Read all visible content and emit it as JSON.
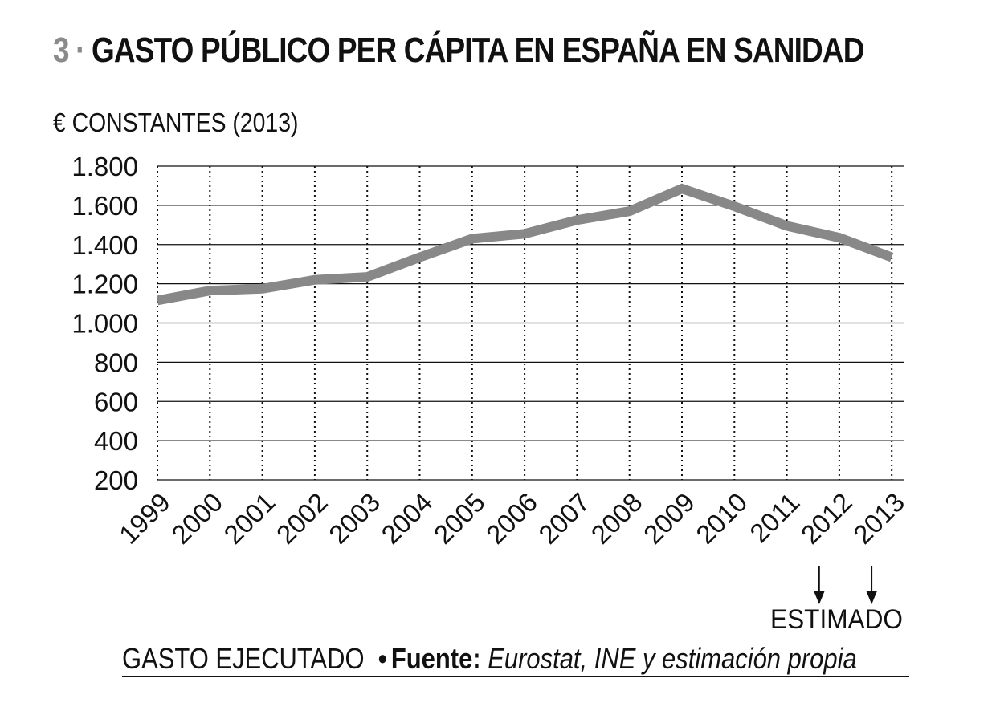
{
  "header": {
    "number": "3",
    "separator": "·",
    "title": "GASTO PÚBLICO PER CÁPITA EN ESPAÑA EN SANIDAD"
  },
  "units_label": "€ CONSTANTES (2013)",
  "annotation": {
    "estimated_label": "ESTIMADO",
    "estimated_years": [
      "2012",
      "2013"
    ]
  },
  "footer": {
    "executed_label": "GASTO EJECUTADO",
    "bullet": "•",
    "source_label": "Fuente:",
    "source_text": "Eurostat, INE y estimación propia"
  },
  "colors": {
    "line": "#888888",
    "grid": "#111111",
    "text": "#111111",
    "accent": "#8a8a8a"
  },
  "chart_data": {
    "type": "line",
    "title": "GASTO PÚBLICO PER CÁPITA EN ESPAÑA EN SANIDAD",
    "ylabel": "€ CONSTANTES (2013)",
    "xlabel": "",
    "categories": [
      "1999",
      "2000",
      "2001",
      "2002",
      "2003",
      "2004",
      "2005",
      "2006",
      "2007",
      "2008",
      "2009",
      "2010",
      "2011",
      "2012",
      "2013"
    ],
    "series": [
      {
        "values": [
          1115,
          1165,
          1175,
          1220,
          1235,
          1335,
          1430,
          1455,
          1525,
          1570,
          1685,
          1595,
          1495,
          1435,
          1335
        ]
      }
    ],
    "ylim": [
      200,
      1800
    ],
    "yticks": [
      200,
      400,
      600,
      800,
      1000,
      1200,
      1400,
      1600,
      1800
    ],
    "ytick_labels": [
      "200",
      "400",
      "600",
      "800",
      "1.000",
      "1.200",
      "1.400",
      "1.600",
      "1.800"
    ],
    "grid": {
      "horizontal": "solid",
      "vertical": "dotted"
    }
  }
}
